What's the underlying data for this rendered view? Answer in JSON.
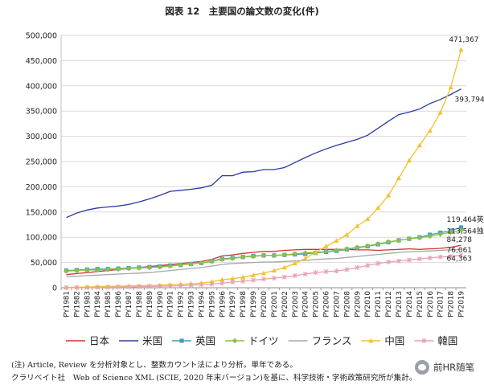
{
  "chart_data": {
    "type": "line",
    "title": "図表 12　主要国の論文数の変化(件)",
    "ylim": [
      0,
      500000
    ],
    "ytick_labels": [
      "0",
      "50,000",
      "100,000",
      "150,000",
      "200,000",
      "250,000",
      "300,000",
      "350,000",
      "400,000",
      "450,000",
      "500,000"
    ],
    "ytick_values": [
      0,
      50000,
      100000,
      150000,
      200000,
      250000,
      300000,
      350000,
      400000,
      450000,
      500000
    ],
    "categories": [
      "PY1981",
      "PY1982",
      "PY1983",
      "PY1984",
      "PY1985",
      "PY1986",
      "PY1987",
      "PY1988",
      "PY1989",
      "PY1990",
      "PY1991",
      "PY1992",
      "PY1993",
      "PY1994",
      "PY1995",
      "PY1996",
      "PY1997",
      "PY1998",
      "PY1999",
      "PY2000",
      "PY2001",
      "PY2002",
      "PY2003",
      "PY2004",
      "PY2005",
      "PY2006",
      "PY2007",
      "PY2008",
      "PY2009",
      "PY2010",
      "PY2011",
      "PY2012",
      "PY2013",
      "PY2014",
      "PY2015",
      "PY2016",
      "PY2017",
      "PY2018",
      "PY2019"
    ],
    "grid": "horizontal",
    "legend_position": "bottom",
    "series": [
      {
        "name": "日本",
        "color": "#d9322b",
        "marker": "none",
        "values": [
          26000,
          28000,
          30000,
          32000,
          34000,
          36000,
          38000,
          40000,
          42000,
          44000,
          46000,
          48000,
          50000,
          52000,
          56000,
          63000,
          65000,
          68000,
          70000,
          72000,
          72000,
          74000,
          75000,
          76000,
          76000,
          76000,
          76000,
          76000,
          75000,
          75000,
          74000,
          75000,
          76000,
          77000,
          76000,
          77000,
          78000,
          80000,
          84278
        ]
      },
      {
        "name": "米国",
        "color": "#2b3a9e",
        "marker": "none",
        "values": [
          139000,
          148000,
          154000,
          158000,
          160000,
          162000,
          165000,
          170000,
          176000,
          183000,
          191000,
          193000,
          195000,
          198000,
          203000,
          222000,
          222000,
          229000,
          230000,
          234000,
          234000,
          238000,
          248000,
          258000,
          267000,
          275000,
          282000,
          288000,
          294000,
          302000,
          316000,
          330000,
          343000,
          348000,
          354000,
          365000,
          373000,
          383000,
          393794
        ]
      },
      {
        "name": "英国",
        "color": "#3f9cc4",
        "marker": "square",
        "values": [
          34000,
          35000,
          36000,
          37000,
          37000,
          38000,
          39000,
          40000,
          41000,
          42000,
          44000,
          45000,
          47000,
          49000,
          53000,
          57000,
          59000,
          61000,
          63000,
          64000,
          64000,
          65000,
          66000,
          67000,
          69000,
          71000,
          73000,
          76000,
          79000,
          82000,
          86000,
          90000,
          94000,
          97000,
          100000,
          105000,
          109000,
          113000,
          119464
        ]
      },
      {
        "name": "ドイツ",
        "color": "#8cbf45",
        "marker": "diamond",
        "values": [
          33000,
          34000,
          35000,
          35000,
          36000,
          37000,
          38000,
          39000,
          40000,
          41000,
          43000,
          45000,
          47000,
          49000,
          52000,
          56000,
          58000,
          61000,
          62000,
          64000,
          64000,
          65000,
          67000,
          69000,
          70000,
          72000,
          74000,
          77000,
          80000,
          83000,
          87000,
          91000,
          94000,
          97000,
          99000,
          102000,
          106000,
          110000,
          113564
        ]
      },
      {
        "name": "フランス",
        "color": "#a6a6a6",
        "marker": "none",
        "values": [
          22000,
          23000,
          24000,
          25000,
          26000,
          27000,
          28000,
          29000,
          30000,
          32000,
          34000,
          36000,
          38000,
          40000,
          43000,
          46000,
          48000,
          49000,
          50000,
          51000,
          51000,
          52000,
          53000,
          54000,
          56000,
          57000,
          58000,
          60000,
          62000,
          64000,
          66000,
          68000,
          70000,
          71000,
          72000,
          73000,
          74000,
          75000,
          76061
        ]
      },
      {
        "name": "中国",
        "color": "#f2c12e",
        "marker": "triangle",
        "values": [
          500,
          1000,
          1500,
          2000,
          2500,
          3000,
          3500,
          4000,
          4500,
          5000,
          6000,
          7000,
          8000,
          9000,
          12000,
          16000,
          18000,
          21000,
          25000,
          29000,
          34000,
          40000,
          48000,
          58000,
          70000,
          82000,
          93000,
          105000,
          122000,
          136000,
          158000,
          183000,
          217000,
          252000,
          282000,
          311000,
          347000,
          397000,
          471367
        ]
      },
      {
        "name": "韓国",
        "color": "#e8a0b0",
        "marker": "cross",
        "values": [
          200,
          300,
          500,
          700,
          900,
          1200,
          1500,
          2000,
          2500,
          3000,
          3500,
          4000,
          5000,
          6000,
          7000,
          9000,
          11000,
          13000,
          15000,
          17000,
          19000,
          21000,
          24000,
          27000,
          30000,
          32000,
          33000,
          36000,
          40000,
          44000,
          48000,
          51000,
          53000,
          55000,
          57000,
          59000,
          61000,
          62000,
          64363
        ]
      }
    ],
    "end_labels": [
      {
        "series": "中国",
        "text": "471,367"
      },
      {
        "series": "米国",
        "text": "393,794"
      },
      {
        "series": "英国",
        "text": "119,464英"
      },
      {
        "series": "ドイツ",
        "text": "113,564独"
      },
      {
        "series": "日本",
        "text": "84,278"
      },
      {
        "series": "フランス",
        "text": "76,061"
      },
      {
        "series": "韓国",
        "text": "64,363"
      }
    ]
  },
  "notes": {
    "line1": "(注) Article, Review を分析対象とし、整数カウント法により分析。単年である。",
    "line2": "クラリベイト社　Web of Science XML (SCIE, 2020 年末バージョン)を基に、科学技術・学術政策研究所が集計。"
  },
  "watermark": {
    "icon": "wechat-icon",
    "text": "前HR随笔"
  }
}
